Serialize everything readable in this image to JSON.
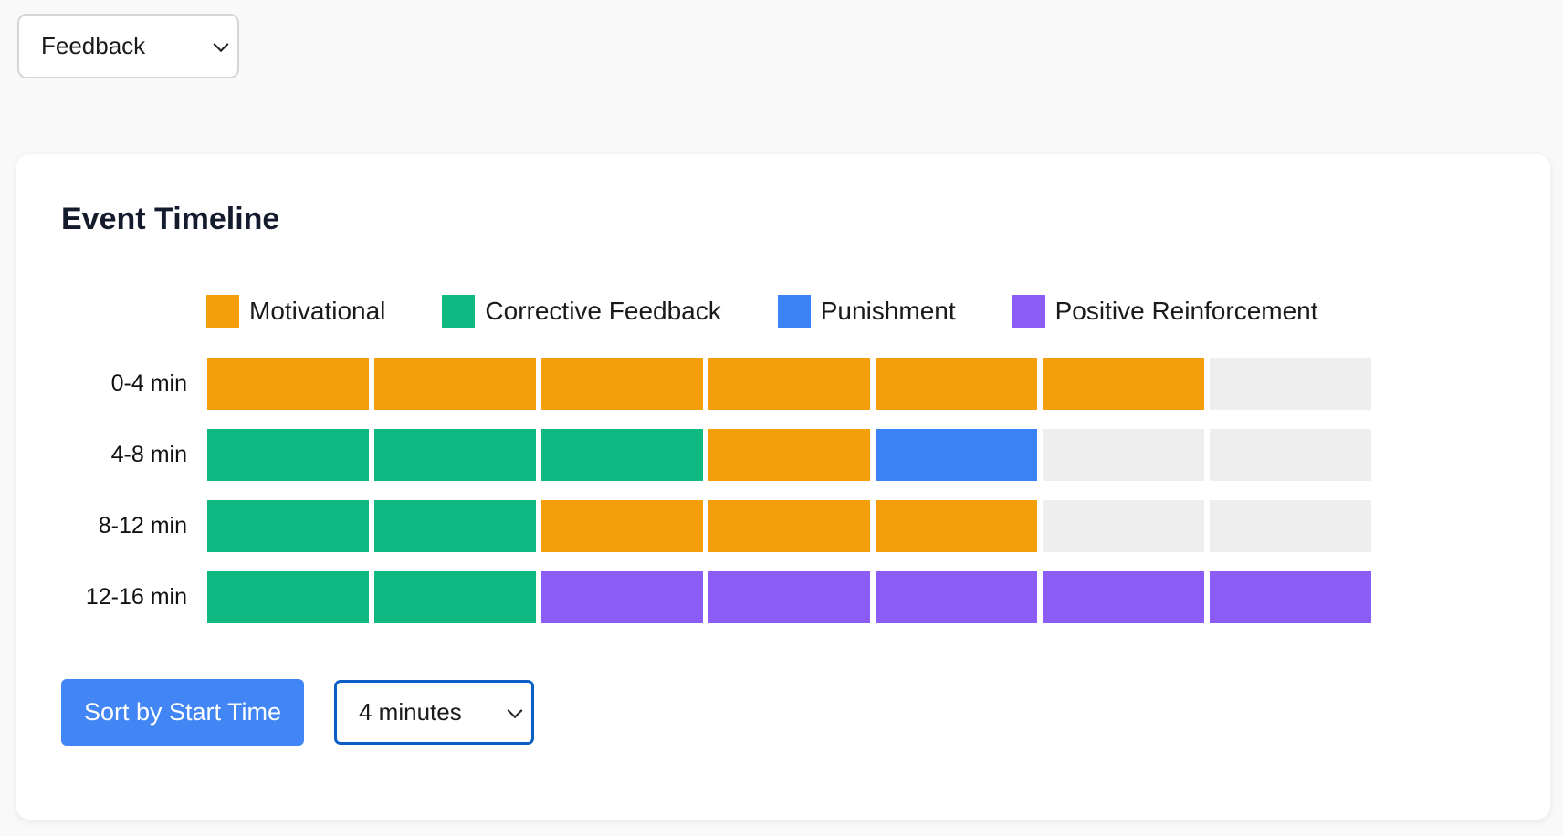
{
  "top_select": {
    "value": "Feedback"
  },
  "card": {
    "title": "Event Timeline",
    "legend": [
      {
        "label": "Motivational",
        "color": "#f59e0b"
      },
      {
        "label": "Corrective Feedback",
        "color": "#10b981"
      },
      {
        "label": "Punishment",
        "color": "#3b82f6"
      },
      {
        "label": "Positive Reinforcement",
        "color": "#8b5cf6"
      }
    ],
    "empty_color": "#eeeeee",
    "rows": [
      {
        "label": "0-4 min",
        "cells": [
          "Motivational",
          "Motivational",
          "Motivational",
          "Motivational",
          "Motivational",
          "Motivational",
          null
        ]
      },
      {
        "label": "4-8 min",
        "cells": [
          "Corrective Feedback",
          "Corrective Feedback",
          "Corrective Feedback",
          "Motivational",
          "Punishment",
          null,
          null
        ]
      },
      {
        "label": "8-12 min",
        "cells": [
          "Corrective Feedback",
          "Corrective Feedback",
          "Motivational",
          "Motivational",
          "Motivational",
          null,
          null
        ]
      },
      {
        "label": "12-16 min",
        "cells": [
          "Corrective Feedback",
          "Corrective Feedback",
          "Positive Reinforcement",
          "Positive Reinforcement",
          "Positive Reinforcement",
          "Positive Reinforcement",
          "Positive Reinforcement"
        ]
      }
    ],
    "sort_button": "Sort by Start Time",
    "interval_select": {
      "value": "4 minutes"
    }
  }
}
